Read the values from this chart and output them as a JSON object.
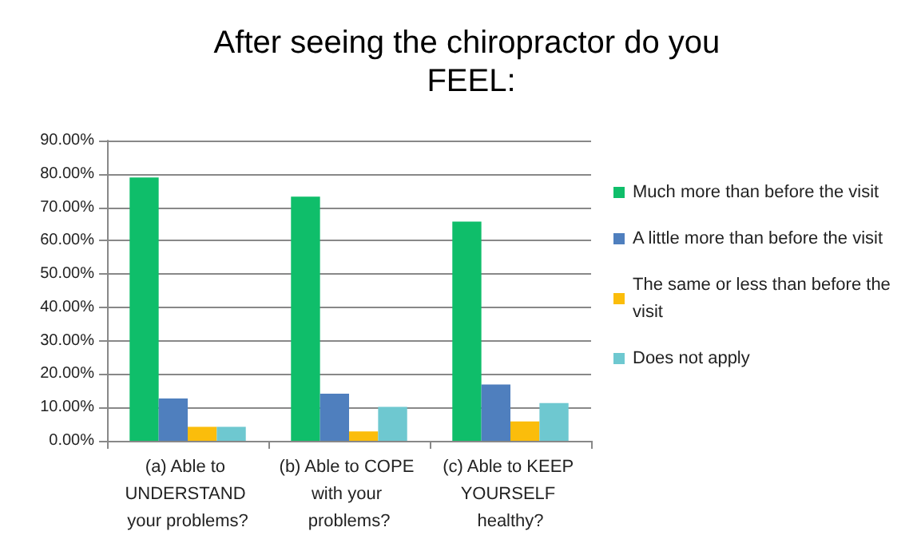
{
  "chart_data": {
    "type": "bar",
    "title": "After seeing the chiropractor do you FEEL:",
    "categories": [
      "(a) Able to UNDERSTAND your problems?",
      "(b) Able to COPE with your problems?",
      "(c) Able to KEEP YOURSELF healthy?"
    ],
    "series": [
      {
        "name": "Much more than before the visit",
        "color": "#0fbe6a",
        "values": [
          78.9,
          73.2,
          65.7
        ]
      },
      {
        "name": "A little more than before the visit",
        "color": "#4f7fbe",
        "values": [
          12.7,
          14.1,
          16.9
        ]
      },
      {
        "name": "The same or less than before the visit",
        "color": "#fbbd0b",
        "values": [
          4.2,
          2.8,
          5.8
        ]
      },
      {
        "name": "Does not apply",
        "color": "#6ec8d0",
        "values": [
          4.2,
          10.2,
          11.3
        ]
      }
    ],
    "ylim": [
      0,
      90
    ],
    "yticks": [
      {
        "value": 0,
        "label": "0.00%"
      },
      {
        "value": 10,
        "label": "10.00%"
      },
      {
        "value": 20,
        "label": "20.00%"
      },
      {
        "value": 30,
        "label": "30.00%"
      },
      {
        "value": 40,
        "label": "40.00%"
      },
      {
        "value": 50,
        "label": "50.00%"
      },
      {
        "value": 60,
        "label": "60.00%"
      },
      {
        "value": 70,
        "label": "70.00%"
      },
      {
        "value": 80,
        "label": "80.00%"
      },
      {
        "value": 90,
        "label": "90.00%"
      }
    ],
    "grid": "y",
    "legend": "right"
  }
}
